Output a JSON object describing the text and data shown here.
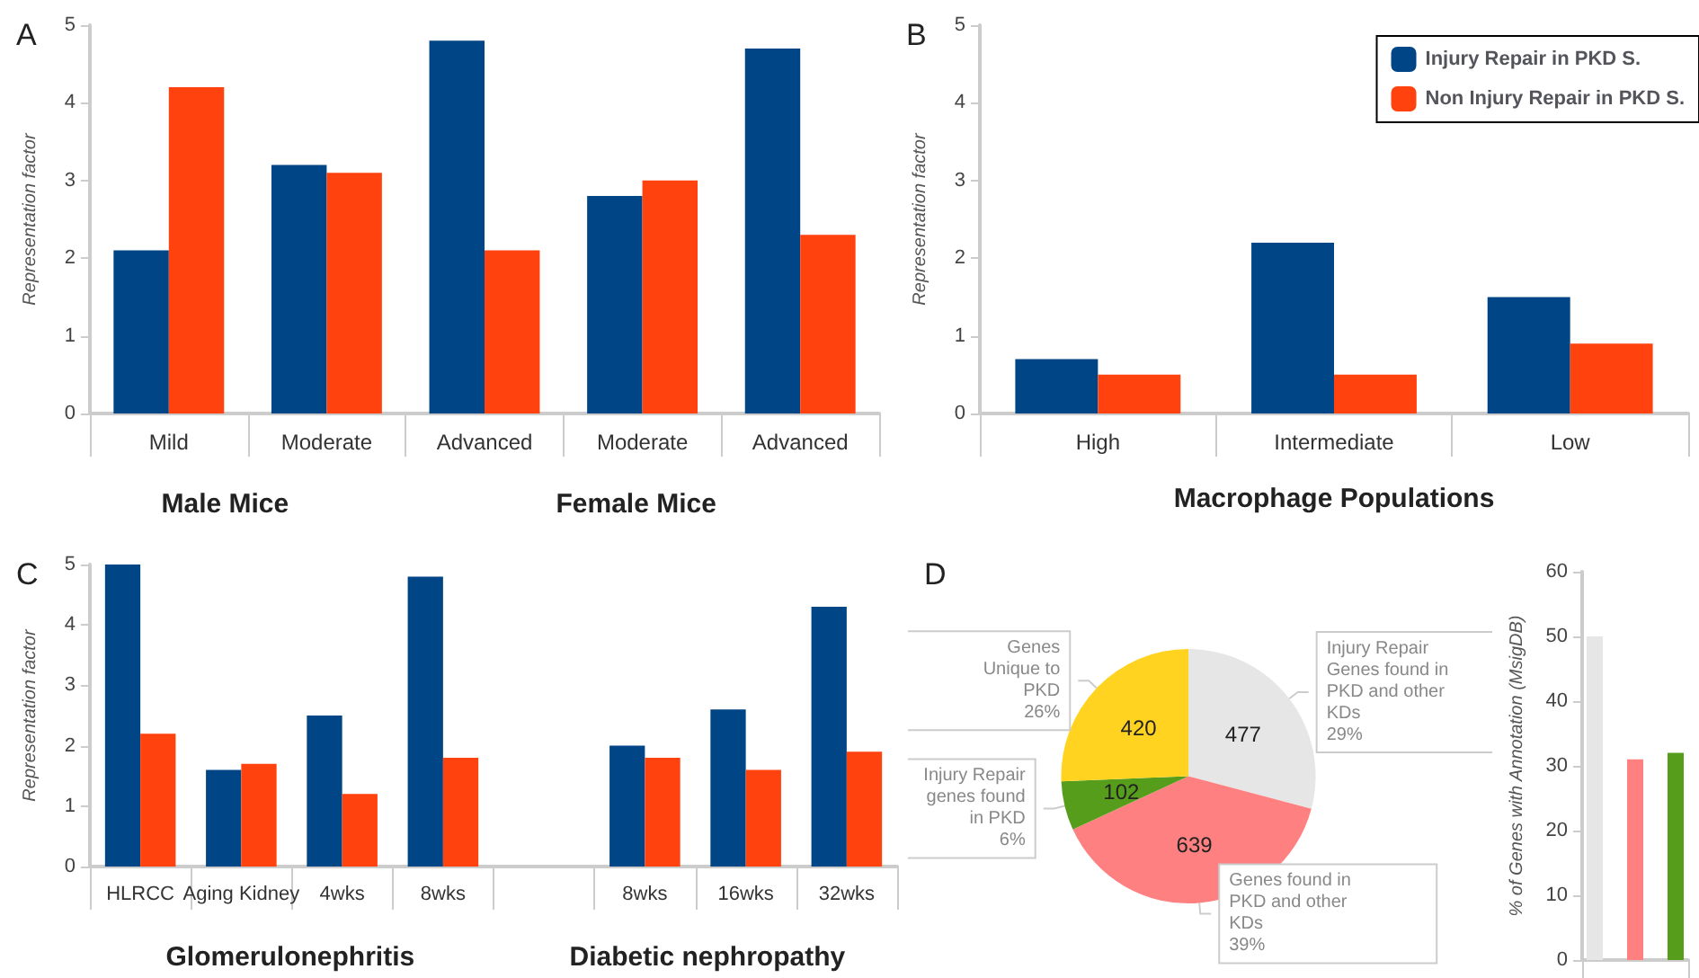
{
  "chart_data": [
    {
      "type": "bar",
      "title": "A",
      "ylabel": "Representation factor",
      "categories": [
        "Mild",
        "Moderate",
        "Advanced",
        "Moderate",
        "Advanced"
      ],
      "series": [
        {
          "color": "#004586",
          "values": [
            2.1,
            3.2,
            4.8,
            2.8,
            4.7
          ]
        },
        {
          "color": "#ff420e",
          "values": [
            4.2,
            3.1,
            2.1,
            3.0,
            2.3
          ]
        }
      ],
      "ylim": [
        0,
        5
      ],
      "yticks": [
        0,
        1,
        2,
        3,
        4,
        5
      ],
      "annotations": [
        "Male Mice",
        "Female Mice"
      ]
    },
    {
      "type": "bar",
      "title": "B",
      "ylabel": "Representation factor",
      "xlabel": "Macrophage Populations",
      "categories": [
        "High",
        "Intermediate",
        "Low"
      ],
      "series": [
        {
          "name": "Injury Repair in PKD S.",
          "color": "#004586",
          "values": [
            0.7,
            2.2,
            1.5
          ]
        },
        {
          "name": "Non Injury Repair in PKD S.",
          "color": "#ff420e",
          "values": [
            0.5,
            0.5,
            0.9
          ]
        }
      ],
      "ylim": [
        0,
        5
      ],
      "yticks": [
        0,
        1,
        2,
        3,
        4,
        5
      ],
      "legend": "top right"
    },
    {
      "type": "bar",
      "title": "C",
      "ylabel": "Representation factor",
      "categories": [
        "HLRCC",
        "Aging Kidney",
        "4wks",
        "8wks",
        null,
        "8wks",
        "16wks",
        "32wks"
      ],
      "series": [
        {
          "color": "#004586",
          "values": [
            5.0,
            1.6,
            2.5,
            4.8,
            null,
            2.0,
            2.6,
            4.3
          ]
        },
        {
          "color": "#ff420e",
          "values": [
            2.2,
            1.7,
            1.2,
            1.8,
            null,
            1.8,
            1.6,
            1.9
          ]
        }
      ],
      "ylim": [
        0,
        5
      ],
      "yticks": [
        0,
        1,
        2,
        3,
        4,
        5
      ],
      "annotations": [
        "Glomerulonephritis",
        "Diabetic nephropathy"
      ]
    },
    {
      "type": "pie",
      "title": "D",
      "categories": [
        "Injury Repair\nGenes found in\nPKD and other\nKDs\n29%",
        "Genes found in\nPKD and other\nKDs\n39%",
        "Injury Repair\ngenes found\nin PKD\n6%",
        "Genes\nUnique to\nPKD\n26%"
      ],
      "values": [
        477,
        639,
        102,
        420
      ],
      "colors": [
        "#e6e6e6",
        "#ff8080",
        "#579d1c",
        "#ffd320"
      ],
      "data_labels": true
    },
    {
      "type": "bar",
      "ylabel": "% of Genes with Annotation (MsigDB)",
      "categories": [
        null
      ],
      "series": [
        {
          "color": "#e6e6e6",
          "values": [
            50
          ]
        },
        {
          "color": "#ff8080",
          "values": [
            31
          ]
        },
        {
          "color": "#579d1c",
          "values": [
            32
          ]
        }
      ],
      "ylim": [
        0,
        60
      ],
      "yticks": [
        0,
        10,
        20,
        30,
        40,
        50,
        60
      ]
    }
  ]
}
